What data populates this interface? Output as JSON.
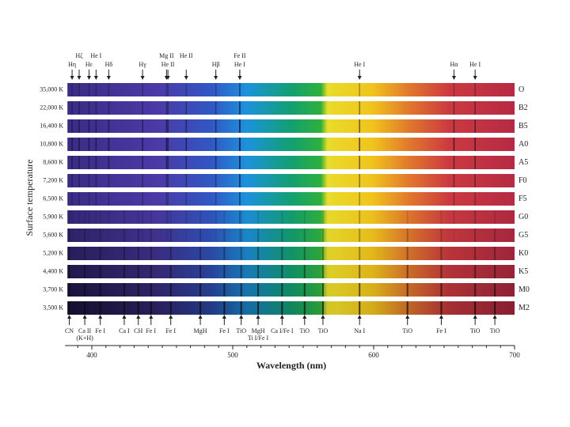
{
  "chart_data": {
    "type": "spectra",
    "xlabel": "Wavelength (nm)",
    "ylabel": "Surface temperature",
    "xlim": [
      381,
      700
    ],
    "xticks": [
      400,
      500,
      600,
      700
    ],
    "rows": [
      {
        "temperature": "35,000 K",
        "class": "O"
      },
      {
        "temperature": "22,000 K",
        "class": "B2"
      },
      {
        "temperature": "16,400 K",
        "class": "B5"
      },
      {
        "temperature": "10,800 K",
        "class": "A0"
      },
      {
        "temperature": "8,600 K",
        "class": "A5"
      },
      {
        "temperature": "7,200 K",
        "class": "F0"
      },
      {
        "temperature": "6,500 K",
        "class": "F5"
      },
      {
        "temperature": "5,900 K",
        "class": "G0"
      },
      {
        "temperature": "5,600 K",
        "class": "G5"
      },
      {
        "temperature": "5,200 K",
        "class": "K0"
      },
      {
        "temperature": "4,400 K",
        "class": "K5"
      },
      {
        "temperature": "3,700 K",
        "class": "M0"
      },
      {
        "temperature": "3,500 K",
        "class": "M2"
      }
    ],
    "lines_top": [
      {
        "label": "Hη",
        "wavelength": 386
      },
      {
        "label": "Hζ",
        "wavelength": 391
      },
      {
        "label": "Hε",
        "wavelength": 398
      },
      {
        "label": "He I",
        "wavelength": 403
      },
      {
        "label": "Hδ",
        "wavelength": 412
      },
      {
        "label": "Hγ",
        "wavelength": 436
      },
      {
        "label": "He II",
        "wavelength": 454
      },
      {
        "label": "Mg II",
        "wavelength": 453
      },
      {
        "label": "He II",
        "wavelength": 467
      },
      {
        "label": "Hβ",
        "wavelength": 488
      },
      {
        "label": "He I",
        "wavelength": 505
      },
      {
        "label": "Fe II",
        "wavelength": 505
      },
      {
        "label": "He I",
        "wavelength": 590
      },
      {
        "label": "Hα",
        "wavelength": 657
      },
      {
        "label": "He I",
        "wavelength": 672
      }
    ],
    "lines_bottom": [
      {
        "label": "CN",
        "wavelength": 384
      },
      {
        "label": "Ca II",
        "sublabel": "(K+H)",
        "wavelength": 395
      },
      {
        "label": "Fe I",
        "wavelength": 406
      },
      {
        "label": "Ca I",
        "wavelength": 423
      },
      {
        "label": "CH",
        "wavelength": 433
      },
      {
        "label": "Fe I",
        "wavelength": 442
      },
      {
        "label": "Fe I",
        "wavelength": 456
      },
      {
        "label": "MgH",
        "wavelength": 477
      },
      {
        "label": "Fe I",
        "wavelength": 494
      },
      {
        "label": "TiO",
        "wavelength": 506
      },
      {
        "label": "MgH",
        "sublabel": "Ti I/Fe I",
        "wavelength": 518
      },
      {
        "label": "Ca I/Fe I",
        "wavelength": 535
      },
      {
        "label": "TiO",
        "wavelength": 551
      },
      {
        "label": "TiO",
        "wavelength": 564
      },
      {
        "label": "Na I",
        "wavelength": 590
      },
      {
        "label": "TiO",
        "wavelength": 624
      },
      {
        "label": "Fe I",
        "wavelength": 648
      },
      {
        "label": "TiO",
        "wavelength": 672
      },
      {
        "label": "TiO",
        "wavelength": 686
      }
    ]
  }
}
